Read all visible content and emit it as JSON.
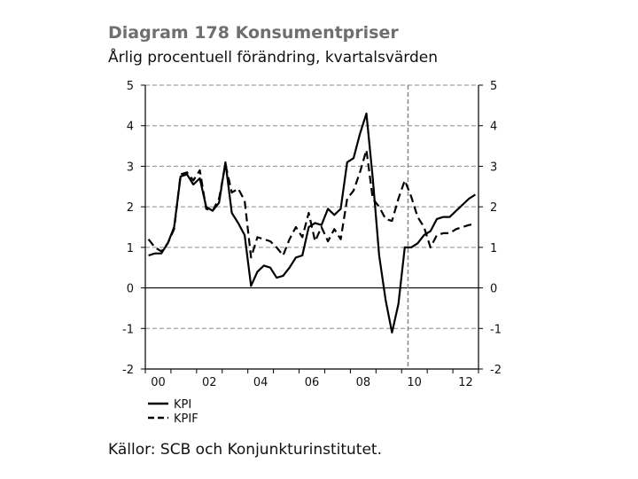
{
  "header": {
    "title": "Diagram 178 Konsumentpriser",
    "subtitle": "Årlig procentuell förändring, kvartalsvärden"
  },
  "footer": {
    "source": "Källor: SCB och Konjunkturinstitutet."
  },
  "chart_data": {
    "type": "line",
    "title": "Diagram 178 Konsumentpriser",
    "subtitle": "Årlig procentuell förändring, kvartalsvärden",
    "xlabel": "",
    "ylabel": "",
    "xlim": [
      2000,
      2013
    ],
    "ylim": [
      -2,
      5
    ],
    "yticks": [
      -2,
      -1,
      0,
      1,
      2,
      3,
      4,
      5
    ],
    "xticks": [
      {
        "value": 2000,
        "label": "00"
      },
      {
        "value": 2002,
        "label": "02"
      },
      {
        "value": 2004,
        "label": "04"
      },
      {
        "value": 2006,
        "label": "06"
      },
      {
        "value": 2008,
        "label": "08"
      },
      {
        "value": 2010,
        "label": "10"
      },
      {
        "value": 2012,
        "label": "12"
      }
    ],
    "forecast_start": 2010.25,
    "grid": "horizontal-dashed",
    "zero_line": true,
    "dual_y_axis": true,
    "legend_position": "bottom-left",
    "series": [
      {
        "name": "KPI",
        "style": "solid",
        "color": "#000000",
        "points": [
          [
            2000.0,
            0.8
          ],
          [
            2000.25,
            0.85
          ],
          [
            2000.5,
            0.85
          ],
          [
            2000.75,
            1.1
          ],
          [
            2001.0,
            1.5
          ],
          [
            2001.25,
            2.75
          ],
          [
            2001.5,
            2.8
          ],
          [
            2001.75,
            2.55
          ],
          [
            2002.0,
            2.7
          ],
          [
            2002.25,
            2.0
          ],
          [
            2002.5,
            1.9
          ],
          [
            2002.75,
            2.1
          ],
          [
            2003.0,
            3.1
          ],
          [
            2003.25,
            1.85
          ],
          [
            2003.5,
            1.6
          ],
          [
            2003.75,
            1.3
          ],
          [
            2004.0,
            0.05
          ],
          [
            2004.25,
            0.4
          ],
          [
            2004.5,
            0.55
          ],
          [
            2004.75,
            0.5
          ],
          [
            2005.0,
            0.25
          ],
          [
            2005.25,
            0.3
          ],
          [
            2005.5,
            0.5
          ],
          [
            2005.75,
            0.75
          ],
          [
            2006.0,
            0.8
          ],
          [
            2006.25,
            1.5
          ],
          [
            2006.5,
            1.6
          ],
          [
            2006.75,
            1.55
          ],
          [
            2007.0,
            1.95
          ],
          [
            2007.25,
            1.8
          ],
          [
            2007.5,
            1.95
          ],
          [
            2007.75,
            3.1
          ],
          [
            2008.0,
            3.2
          ],
          [
            2008.25,
            3.8
          ],
          [
            2008.5,
            4.3
          ],
          [
            2008.75,
            2.7
          ],
          [
            2009.0,
            0.8
          ],
          [
            2009.25,
            -0.3
          ],
          [
            2009.5,
            -1.1
          ],
          [
            2009.75,
            -0.4
          ],
          [
            2010.0,
            1.0
          ],
          [
            2010.25,
            1.0
          ],
          [
            2010.5,
            1.1
          ],
          [
            2010.75,
            1.3
          ],
          [
            2011.0,
            1.4
          ],
          [
            2011.25,
            1.7
          ],
          [
            2011.5,
            1.75
          ],
          [
            2011.75,
            1.75
          ],
          [
            2012.0,
            1.9
          ],
          [
            2012.25,
            2.05
          ],
          [
            2012.5,
            2.2
          ],
          [
            2012.75,
            2.3
          ]
        ]
      },
      {
        "name": "KPIF",
        "style": "dashed",
        "color": "#000000",
        "points": [
          [
            2000.0,
            1.2
          ],
          [
            2000.25,
            1.0
          ],
          [
            2000.5,
            0.9
          ],
          [
            2000.75,
            1.1
          ],
          [
            2001.0,
            1.45
          ],
          [
            2001.25,
            2.8
          ],
          [
            2001.5,
            2.85
          ],
          [
            2001.75,
            2.65
          ],
          [
            2002.0,
            2.9
          ],
          [
            2002.25,
            1.95
          ],
          [
            2002.5,
            1.9
          ],
          [
            2002.75,
            2.2
          ],
          [
            2003.0,
            3.05
          ],
          [
            2003.25,
            2.35
          ],
          [
            2003.5,
            2.45
          ],
          [
            2003.75,
            2.15
          ],
          [
            2004.0,
            0.75
          ],
          [
            2004.25,
            1.25
          ],
          [
            2004.5,
            1.2
          ],
          [
            2004.75,
            1.15
          ],
          [
            2005.0,
            1.0
          ],
          [
            2005.25,
            0.8
          ],
          [
            2005.5,
            1.2
          ],
          [
            2005.75,
            1.5
          ],
          [
            2006.0,
            1.25
          ],
          [
            2006.25,
            1.85
          ],
          [
            2006.5,
            1.15
          ],
          [
            2006.75,
            1.5
          ],
          [
            2007.0,
            1.15
          ],
          [
            2007.25,
            1.45
          ],
          [
            2007.5,
            1.2
          ],
          [
            2007.75,
            2.2
          ],
          [
            2008.0,
            2.4
          ],
          [
            2008.25,
            2.85
          ],
          [
            2008.5,
            3.4
          ],
          [
            2008.75,
            2.2
          ],
          [
            2009.0,
            2.0
          ],
          [
            2009.25,
            1.7
          ],
          [
            2009.5,
            1.65
          ],
          [
            2009.75,
            2.2
          ],
          [
            2010.0,
            2.65
          ],
          [
            2010.25,
            2.25
          ],
          [
            2010.5,
            1.75
          ],
          [
            2010.75,
            1.5
          ],
          [
            2011.0,
            1.0
          ],
          [
            2011.25,
            1.3
          ],
          [
            2011.5,
            1.35
          ],
          [
            2011.75,
            1.35
          ],
          [
            2012.0,
            1.45
          ],
          [
            2012.25,
            1.5
          ],
          [
            2012.5,
            1.55
          ],
          [
            2012.75,
            1.58
          ]
        ]
      }
    ]
  }
}
